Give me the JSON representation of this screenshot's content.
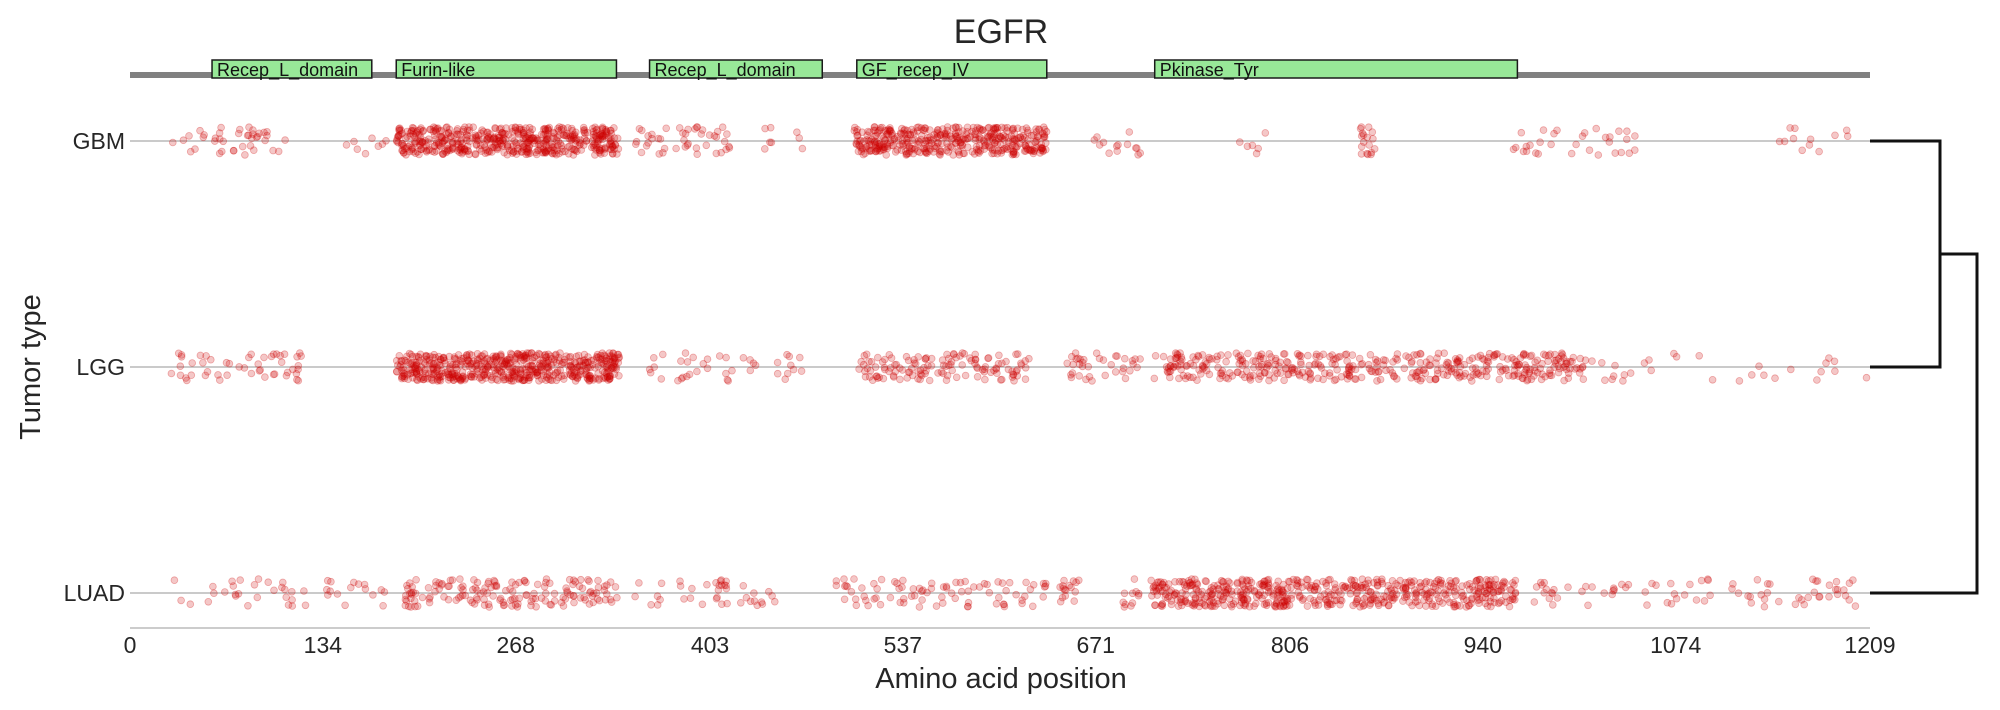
{
  "chart_data": {
    "type": "scatter",
    "title": "EGFR",
    "xlabel": "Amino acid position",
    "ylabel": "Tumor type",
    "xlim": [
      0,
      1209
    ],
    "x_ticks": [
      "0",
      "134",
      "268",
      "403",
      "537",
      "671",
      "806",
      "940",
      "1074",
      "1209"
    ],
    "x_tick_values": [
      0,
      134,
      268,
      403,
      537,
      671,
      806,
      940,
      1074,
      1209
    ],
    "categories": [
      "GBM",
      "LGG",
      "LUAD"
    ],
    "point_color": "#cc0000",
    "domains": [
      {
        "name": "Recep_L_domain",
        "start": 57,
        "end": 168
      },
      {
        "name": "Furin-like",
        "start": 185,
        "end": 338
      },
      {
        "name": "Recep_L_domain",
        "start": 361,
        "end": 481
      },
      {
        "name": "GF_recep_IV",
        "start": 505,
        "end": 637
      },
      {
        "name": "Pkinase_Tyr",
        "start": 712,
        "end": 964
      }
    ],
    "series": [
      {
        "name": "GBM",
        "clusters": [
          {
            "start": 28,
            "end": 110,
            "count": 40
          },
          {
            "start": 150,
            "end": 178,
            "count": 8
          },
          {
            "start": 185,
            "end": 340,
            "count": 520
          },
          {
            "start": 350,
            "end": 420,
            "count": 45
          },
          {
            "start": 440,
            "end": 470,
            "count": 8
          },
          {
            "start": 503,
            "end": 637,
            "count": 420
          },
          {
            "start": 670,
            "end": 710,
            "count": 14
          },
          {
            "start": 770,
            "end": 790,
            "count": 6
          },
          {
            "start": 855,
            "end": 865,
            "count": 18
          },
          {
            "start": 960,
            "end": 1050,
            "count": 32
          },
          {
            "start": 1130,
            "end": 1200,
            "count": 12
          }
        ]
      },
      {
        "name": "LGG",
        "clusters": [
          {
            "start": 28,
            "end": 120,
            "count": 50
          },
          {
            "start": 185,
            "end": 340,
            "count": 560
          },
          {
            "start": 355,
            "end": 470,
            "count": 40
          },
          {
            "start": 505,
            "end": 625,
            "count": 130
          },
          {
            "start": 650,
            "end": 720,
            "count": 40
          },
          {
            "start": 720,
            "end": 1010,
            "count": 420
          },
          {
            "start": 1010,
            "end": 1209,
            "count": 30
          }
        ]
      },
      {
        "name": "LUAD",
        "clusters": [
          {
            "start": 28,
            "end": 180,
            "count": 45
          },
          {
            "start": 190,
            "end": 340,
            "count": 160
          },
          {
            "start": 350,
            "end": 450,
            "count": 40
          },
          {
            "start": 490,
            "end": 660,
            "count": 100
          },
          {
            "start": 690,
            "end": 710,
            "count": 12
          },
          {
            "start": 710,
            "end": 965,
            "count": 560
          },
          {
            "start": 975,
            "end": 1209,
            "count": 80
          }
        ]
      }
    ],
    "dendrogram": {
      "pairs": [
        [
          "GBM",
          "LGG"
        ],
        [
          "GBM-LGG",
          "LUAD"
        ]
      ],
      "orientation": "right"
    }
  }
}
